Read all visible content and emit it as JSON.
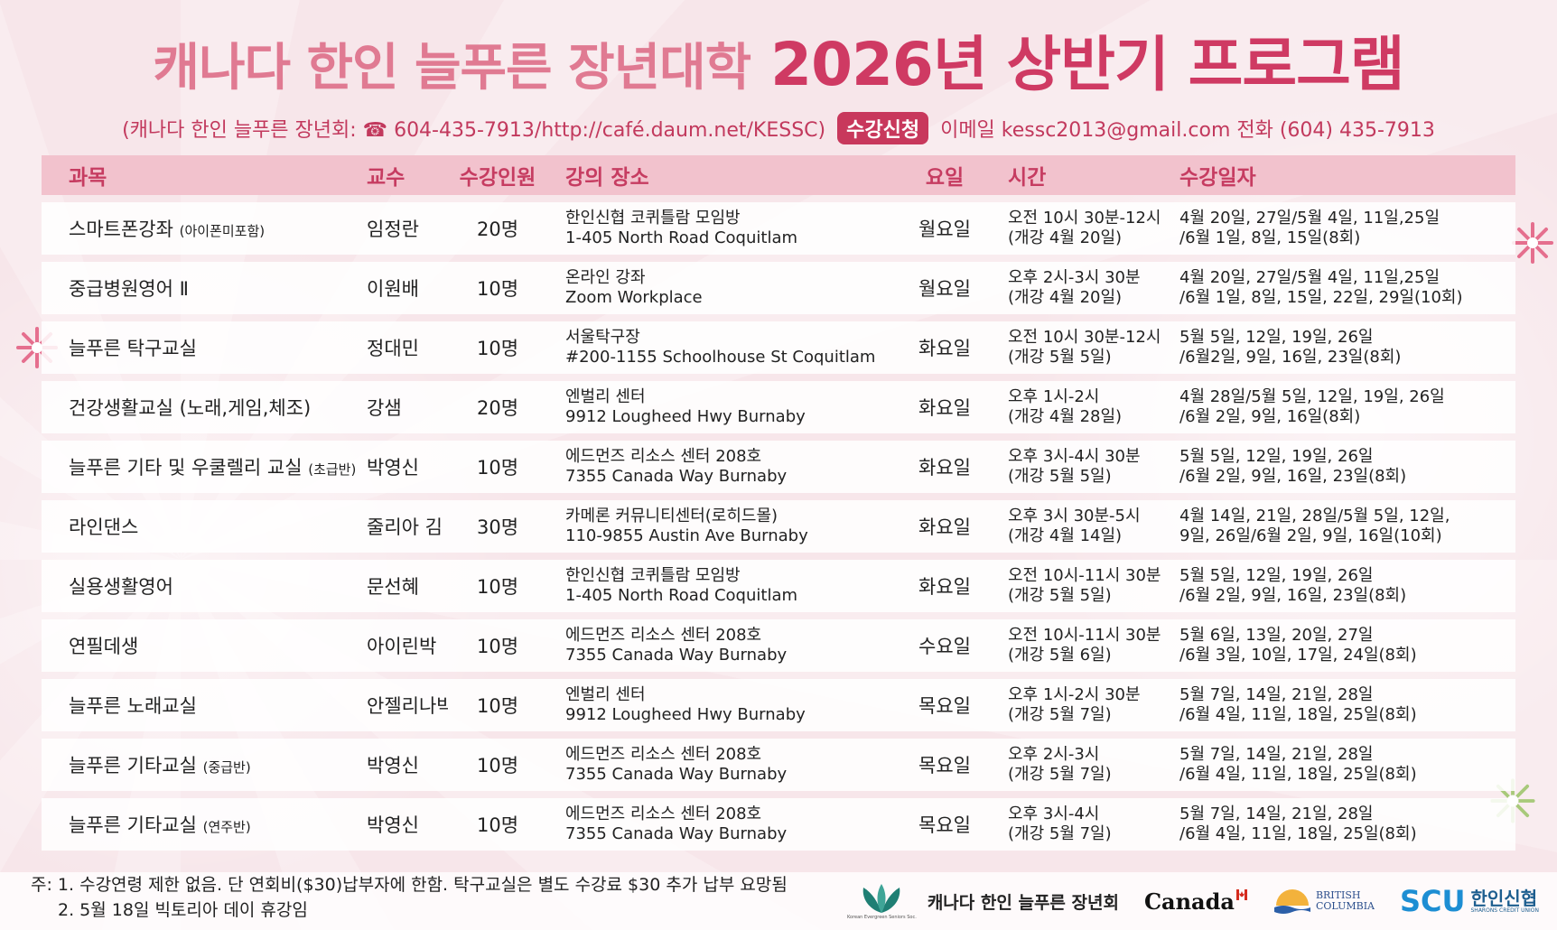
{
  "title": {
    "part1": "캐나다 한인 늘푸른 장년대학",
    "part2": "2026년 상반기 프로그램"
  },
  "contact": {
    "prefix": "(캐나다 한인 늘푸른 장년회: ☎ 604-435-7913/http://café.daum.net/KESSC)",
    "badge": "수강신청",
    "suffix": "이메일 kessc2013@gmail.com 전화 (604) 435-7913"
  },
  "table": {
    "headers": [
      "과목",
      "교수",
      "수강인원",
      "강의 장소",
      "요일",
      "시간",
      "수강일자"
    ],
    "rows": [
      {
        "subject": "스마트폰강좌",
        "subject_note": "(아이폰미포함)",
        "professor": "임정란",
        "capacity": "20명",
        "location1": "한인신협 코퀴틀람 모임방",
        "location2": "1-405 North Road Coquitlam",
        "day": "월요일",
        "time1": "오전 10시 30분-12시",
        "time2": "(개강 4월 20일)",
        "dates1": "4월 20일, 27일/5월 4일, 11일,25일",
        "dates2": "/6월 1일, 8일, 15일(8회)"
      },
      {
        "subject": "중급병원영어 Ⅱ",
        "subject_note": "",
        "professor": "이원배",
        "capacity": "10명",
        "location1": "온라인 강좌",
        "location2": "Zoom Workplace",
        "day": "월요일",
        "time1": "오후 2시-3시 30분",
        "time2": "(개강 4월 20일)",
        "dates1": "4월 20일, 27일/5월 4일, 11일,25일",
        "dates2": "/6월 1일, 8일, 15일, 22일, 29일(10회)"
      },
      {
        "subject": "늘푸른 탁구교실",
        "subject_note": "",
        "professor": "정대민",
        "capacity": "10명",
        "location1": "서울탁구장",
        "location2": "#200-1155 Schoolhouse St Coquitlam",
        "day": "화요일",
        "time1": "오전 10시 30분-12시",
        "time2": "(개강 5월 5일)",
        "dates1": "5월 5일, 12일, 19일, 26일",
        "dates2": "/6월2일, 9일, 16일, 23일(8회)"
      },
      {
        "subject": "건강생활교실 (노래,게임,체조)",
        "subject_note": "",
        "professor": "강샘",
        "capacity": "20명",
        "location1": "엔벌리 센터",
        "location2": "9912 Lougheed Hwy Burnaby",
        "day": "화요일",
        "time1": "오후 1시-2시",
        "time2": "(개강 4월 28일)",
        "dates1": "4월 28일/5월 5일, 12일, 19일, 26일",
        "dates2": "/6월 2일, 9일, 16일(8회)"
      },
      {
        "subject": "늘푸른 기타 및 우쿨렐리 교실",
        "subject_note": "(초급반)",
        "professor": "박영신",
        "capacity": "10명",
        "location1": "에드먼즈 리소스 센터 208호",
        "location2": "7355 Canada Way Burnaby",
        "day": "화요일",
        "time1": "오후 3시-4시 30분",
        "time2": "(개강 5월 5일)",
        "dates1": "5월 5일, 12일, 19일, 26일",
        "dates2": "/6월 2일, 9일, 16일, 23일(8회)"
      },
      {
        "subject": "라인댄스",
        "subject_note": "",
        "professor": "줄리아 김",
        "capacity": "30명",
        "location1": "카메론 커뮤니티센터(로히드몰)",
        "location2": "110-9855 Austin Ave Burnaby",
        "day": "화요일",
        "time1": "오후 3시 30분-5시",
        "time2": "(개강 4월 14일)",
        "dates1": "4월 14일, 21일, 28일/5월 5일, 12일,",
        "dates2": "9일, 26일/6월 2일, 9일, 16일(10회)"
      },
      {
        "subject": "실용생활영어",
        "subject_note": "",
        "professor": "문선혜",
        "capacity": "10명",
        "location1": "한인신협 코퀴틀람 모임방",
        "location2": "1-405 North Road Coquitlam",
        "day": "화요일",
        "time1": "오전 10시-11시 30분",
        "time2": "(개강 5월 5일)",
        "dates1": "5월 5일, 12일, 19일, 26일",
        "dates2": "/6월 2일, 9일, 16일, 23일(8회)"
      },
      {
        "subject": "연필데생",
        "subject_note": "",
        "professor": "아이린박",
        "capacity": "10명",
        "location1": "에드먼즈 리소스 센터 208호",
        "location2": "7355 Canada Way Burnaby",
        "day": "수요일",
        "time1": "오전 10시-11시 30분",
        "time2": "(개강 5월 6일)",
        "dates1": "5월 6일, 13일, 20일, 27일",
        "dates2": "/6월 3일, 10일, 17일, 24일(8회)"
      },
      {
        "subject": "늘푸른 노래교실",
        "subject_note": "",
        "professor": "안젤리나박",
        "capacity": "10명",
        "location1": "엔벌리 센터",
        "location2": "9912 Lougheed Hwy Burnaby",
        "day": "목요일",
        "time1": "오후 1시-2시 30분",
        "time2": "(개강 5월 7일)",
        "dates1": "5월 7일, 14일, 21일, 28일",
        "dates2": "/6월 4일, 11일, 18일, 25일(8회)"
      },
      {
        "subject": "늘푸른 기타교실",
        "subject_note": "(중급반)",
        "professor": "박영신",
        "capacity": "10명",
        "location1": "에드먼즈 리소스 센터 208호",
        "location2": "7355 Canada Way Burnaby",
        "day": "목요일",
        "time1": "오후 2시-3시",
        "time2": "(개강 5월 7일)",
        "dates1": "5월 7일, 14일, 21일, 28일",
        "dates2": "/6월 4일, 11일, 18일, 25일(8회)"
      },
      {
        "subject": "늘푸른 기타교실",
        "subject_note": "(연주반)",
        "professor": "박영신",
        "capacity": "10명",
        "location1": "에드먼즈 리소스 센터 208호",
        "location2": "7355 Canada Way Burnaby",
        "day": "목요일",
        "time1": "오후 3시-4시",
        "time2": "(개강 5월 7일)",
        "dates1": "5월 7일, 14일, 21일, 28일",
        "dates2": "/6월 4일, 11일, 18일, 25일(8회)"
      }
    ]
  },
  "notes": {
    "line1": "주: 1. 수강연령 제한 없음. 단 연회비($30)납부자에 한함.  탁구교실은 별도 수강료 $30 추가 납부 요망됨",
    "line2": "2. 5월 18일 빅토리아 데이 휴강임"
  },
  "logos": {
    "kessc_name": "캐나다 한인 늘푸른 장년회",
    "kessc_tiny": "Korean Evergreen Seniors Soc.",
    "canada": "Canada",
    "bc_line1": "BRITISH",
    "bc_line2": "COLUMBIA",
    "scu": "SCU",
    "scu_korean": "한인신협",
    "scu_sub": "SHARONS CREDIT UNION"
  },
  "colors": {
    "title_light": "#e07a92",
    "title_dark": "#cf3a63",
    "header_bg": "#f2c2cd",
    "accent": "#c8385c"
  }
}
